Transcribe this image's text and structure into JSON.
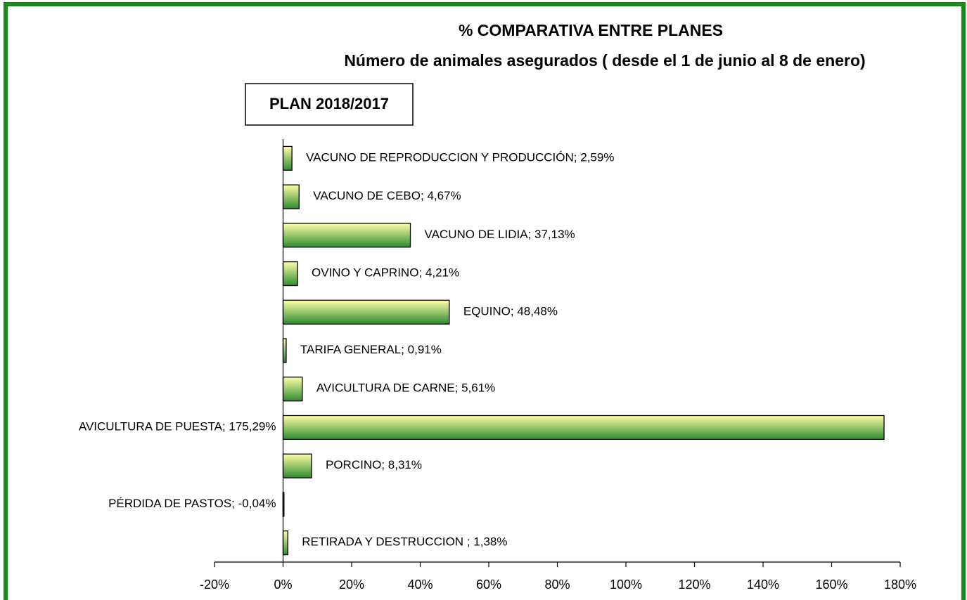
{
  "chart_data": {
    "type": "barh",
    "title": "% COMPARATIVA ENTRE PLANES",
    "subtitle": "Número de animales asegurados ( desde el 1 de junio al 8 de enero)",
    "annotation": "PLAN 2018/2017",
    "categories": [
      "VACUNO DE REPRODUCCION Y PRODUCCIÓN",
      "VACUNO DE CEBO",
      "VACUNO DE LIDIA",
      "OVINO Y CAPRINO",
      "EQUINO",
      "TARIFA GENERAL",
      "AVICULTURA DE CARNE",
      "AVICULTURA DE PUESTA",
      "PORCINO",
      "PÉRDIDA DE PASTOS",
      "RETIRADA Y DESTRUCCION "
    ],
    "label_separator": "; ",
    "values": [
      2.59,
      4.67,
      37.13,
      4.21,
      48.48,
      0.91,
      5.61,
      175.29,
      8.31,
      -0.04,
      1.38
    ],
    "value_labels": [
      "2,59%",
      "4,67%",
      "37,13%",
      "4,21%",
      "48,48%",
      "0,91%",
      "5,61%",
      "175,29%",
      "8,31%",
      "-0,04%",
      "1,38%"
    ],
    "gradient": [
      "#ffffa8",
      "#2e8b2e"
    ],
    "frame_color": "#1a8a1a",
    "xlim": [
      -20,
      180
    ],
    "xticks": [
      {
        "value": -20,
        "label": "-20%"
      },
      {
        "value": 0,
        "label": "0%"
      },
      {
        "value": 20,
        "label": "20%"
      },
      {
        "value": 40,
        "label": "40%"
      },
      {
        "value": 60,
        "label": "60%"
      },
      {
        "value": 80,
        "label": "80%"
      },
      {
        "value": 100,
        "label": "100%"
      },
      {
        "value": 120,
        "label": "120%"
      },
      {
        "value": 140,
        "label": "140%"
      },
      {
        "value": 160,
        "label": "160%"
      },
      {
        "value": 180,
        "label": "180%"
      }
    ]
  }
}
